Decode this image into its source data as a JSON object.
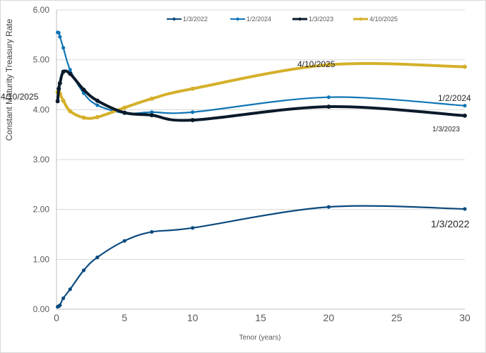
{
  "chart_data": {
    "type": "line",
    "title": "",
    "xlabel": "Tenor (years)",
    "ylabel": "Constant Maturity Treasury Rate",
    "xlim": [
      0,
      30
    ],
    "ylim": [
      0,
      6
    ],
    "x_ticks": [
      "0",
      "5",
      "10",
      "15",
      "20",
      "25",
      "30"
    ],
    "y_ticks": [
      "0.00",
      "1.00",
      "2.00",
      "3.00",
      "4.00",
      "5.00",
      "6.00"
    ],
    "grid": "horizontal",
    "legend_position": "top",
    "smoothed": true,
    "x": [
      0.0833,
      0.1667,
      0.25,
      0.5,
      1,
      2,
      3,
      5,
      7,
      10,
      20,
      30
    ],
    "series": [
      {
        "name": "1/3/2022",
        "color": "#0b4a7e",
        "values": [
          0.05,
          0.06,
          0.08,
          0.22,
          0.4,
          0.78,
          1.04,
          1.37,
          1.55,
          1.63,
          2.05,
          2.01
        ]
      },
      {
        "name": "1/2/2024",
        "color": "#0f75b5",
        "values": [
          5.55,
          5.54,
          5.46,
          5.24,
          4.8,
          4.33,
          4.09,
          3.93,
          3.95,
          3.95,
          4.25,
          4.08
        ]
      },
      {
        "name": "1/3/2023",
        "color": "#0a1a2b",
        "values": [
          4.17,
          4.42,
          4.53,
          4.76,
          4.72,
          4.4,
          4.18,
          3.94,
          3.89,
          3.79,
          4.06,
          3.88
        ]
      },
      {
        "name": "4/10/2025",
        "color": "#d4b02a",
        "values": [
          4.35,
          4.37,
          4.32,
          4.18,
          3.97,
          3.84,
          3.85,
          4.04,
          4.22,
          4.42,
          4.9,
          4.86
        ]
      }
    ],
    "annotations": [
      {
        "text": "4/10/2025",
        "series": "4/10/2025",
        "x": 0.0833
      },
      {
        "text": "4/10/2025",
        "series": "4/10/2025",
        "x": 20
      },
      {
        "text": "1/2/2024",
        "series": "1/2/2024",
        "x": 30
      },
      {
        "text": "1/3/2023",
        "series": "1/3/2023",
        "x": 30
      },
      {
        "text": "1/3/2022",
        "series": "1/3/2022",
        "x": 30
      }
    ]
  }
}
